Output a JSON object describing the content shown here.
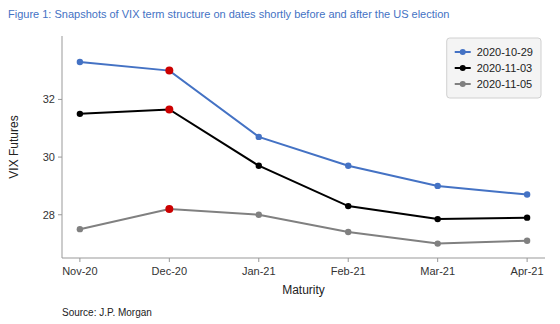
{
  "chart_data": {
    "type": "line",
    "title": "Figure 1: Snapshots of VIX term structure on dates shortly before and after the US election",
    "x_label": "Maturity",
    "y_label": "VIX Futures",
    "source": "Source: J.P. Morgan",
    "categories": [
      "Nov-20",
      "Dec-20",
      "Jan-21",
      "Feb-21",
      "Mar-21",
      "Apr-21"
    ],
    "series": [
      {
        "name": "2020-10-29",
        "color": "#4472C4",
        "marker": "circle",
        "colors": [
          "#4472C4",
          "#CC0000",
          "#4472C4",
          "#4472C4",
          "#4472C4",
          "#4472C4"
        ],
        "values": [
          33.3,
          33.0,
          30.7,
          29.7,
          29.0,
          28.7
        ]
      },
      {
        "name": "2020-11-03",
        "color": "#000000",
        "marker": "circle",
        "colors": [
          "#000000",
          "#CC0000",
          "#000000",
          "#000000",
          "#000000",
          "#000000"
        ],
        "values": [
          31.5,
          31.65,
          29.7,
          28.3,
          27.85,
          27.9
        ]
      },
      {
        "name": "2020-11-05",
        "color": "#808080",
        "marker": "circle",
        "colors": [
          "#808080",
          "#CC0000",
          "#808080",
          "#808080",
          "#808080",
          "#808080"
        ],
        "values": [
          27.5,
          28.2,
          28.0,
          27.4,
          27.0,
          27.1
        ]
      }
    ],
    "ylim": [
      26.5,
      34.2
    ],
    "yticks": [
      28,
      30,
      32
    ],
    "grid": false,
    "legend": "upper right",
    "title_color": "#4472C4"
  }
}
